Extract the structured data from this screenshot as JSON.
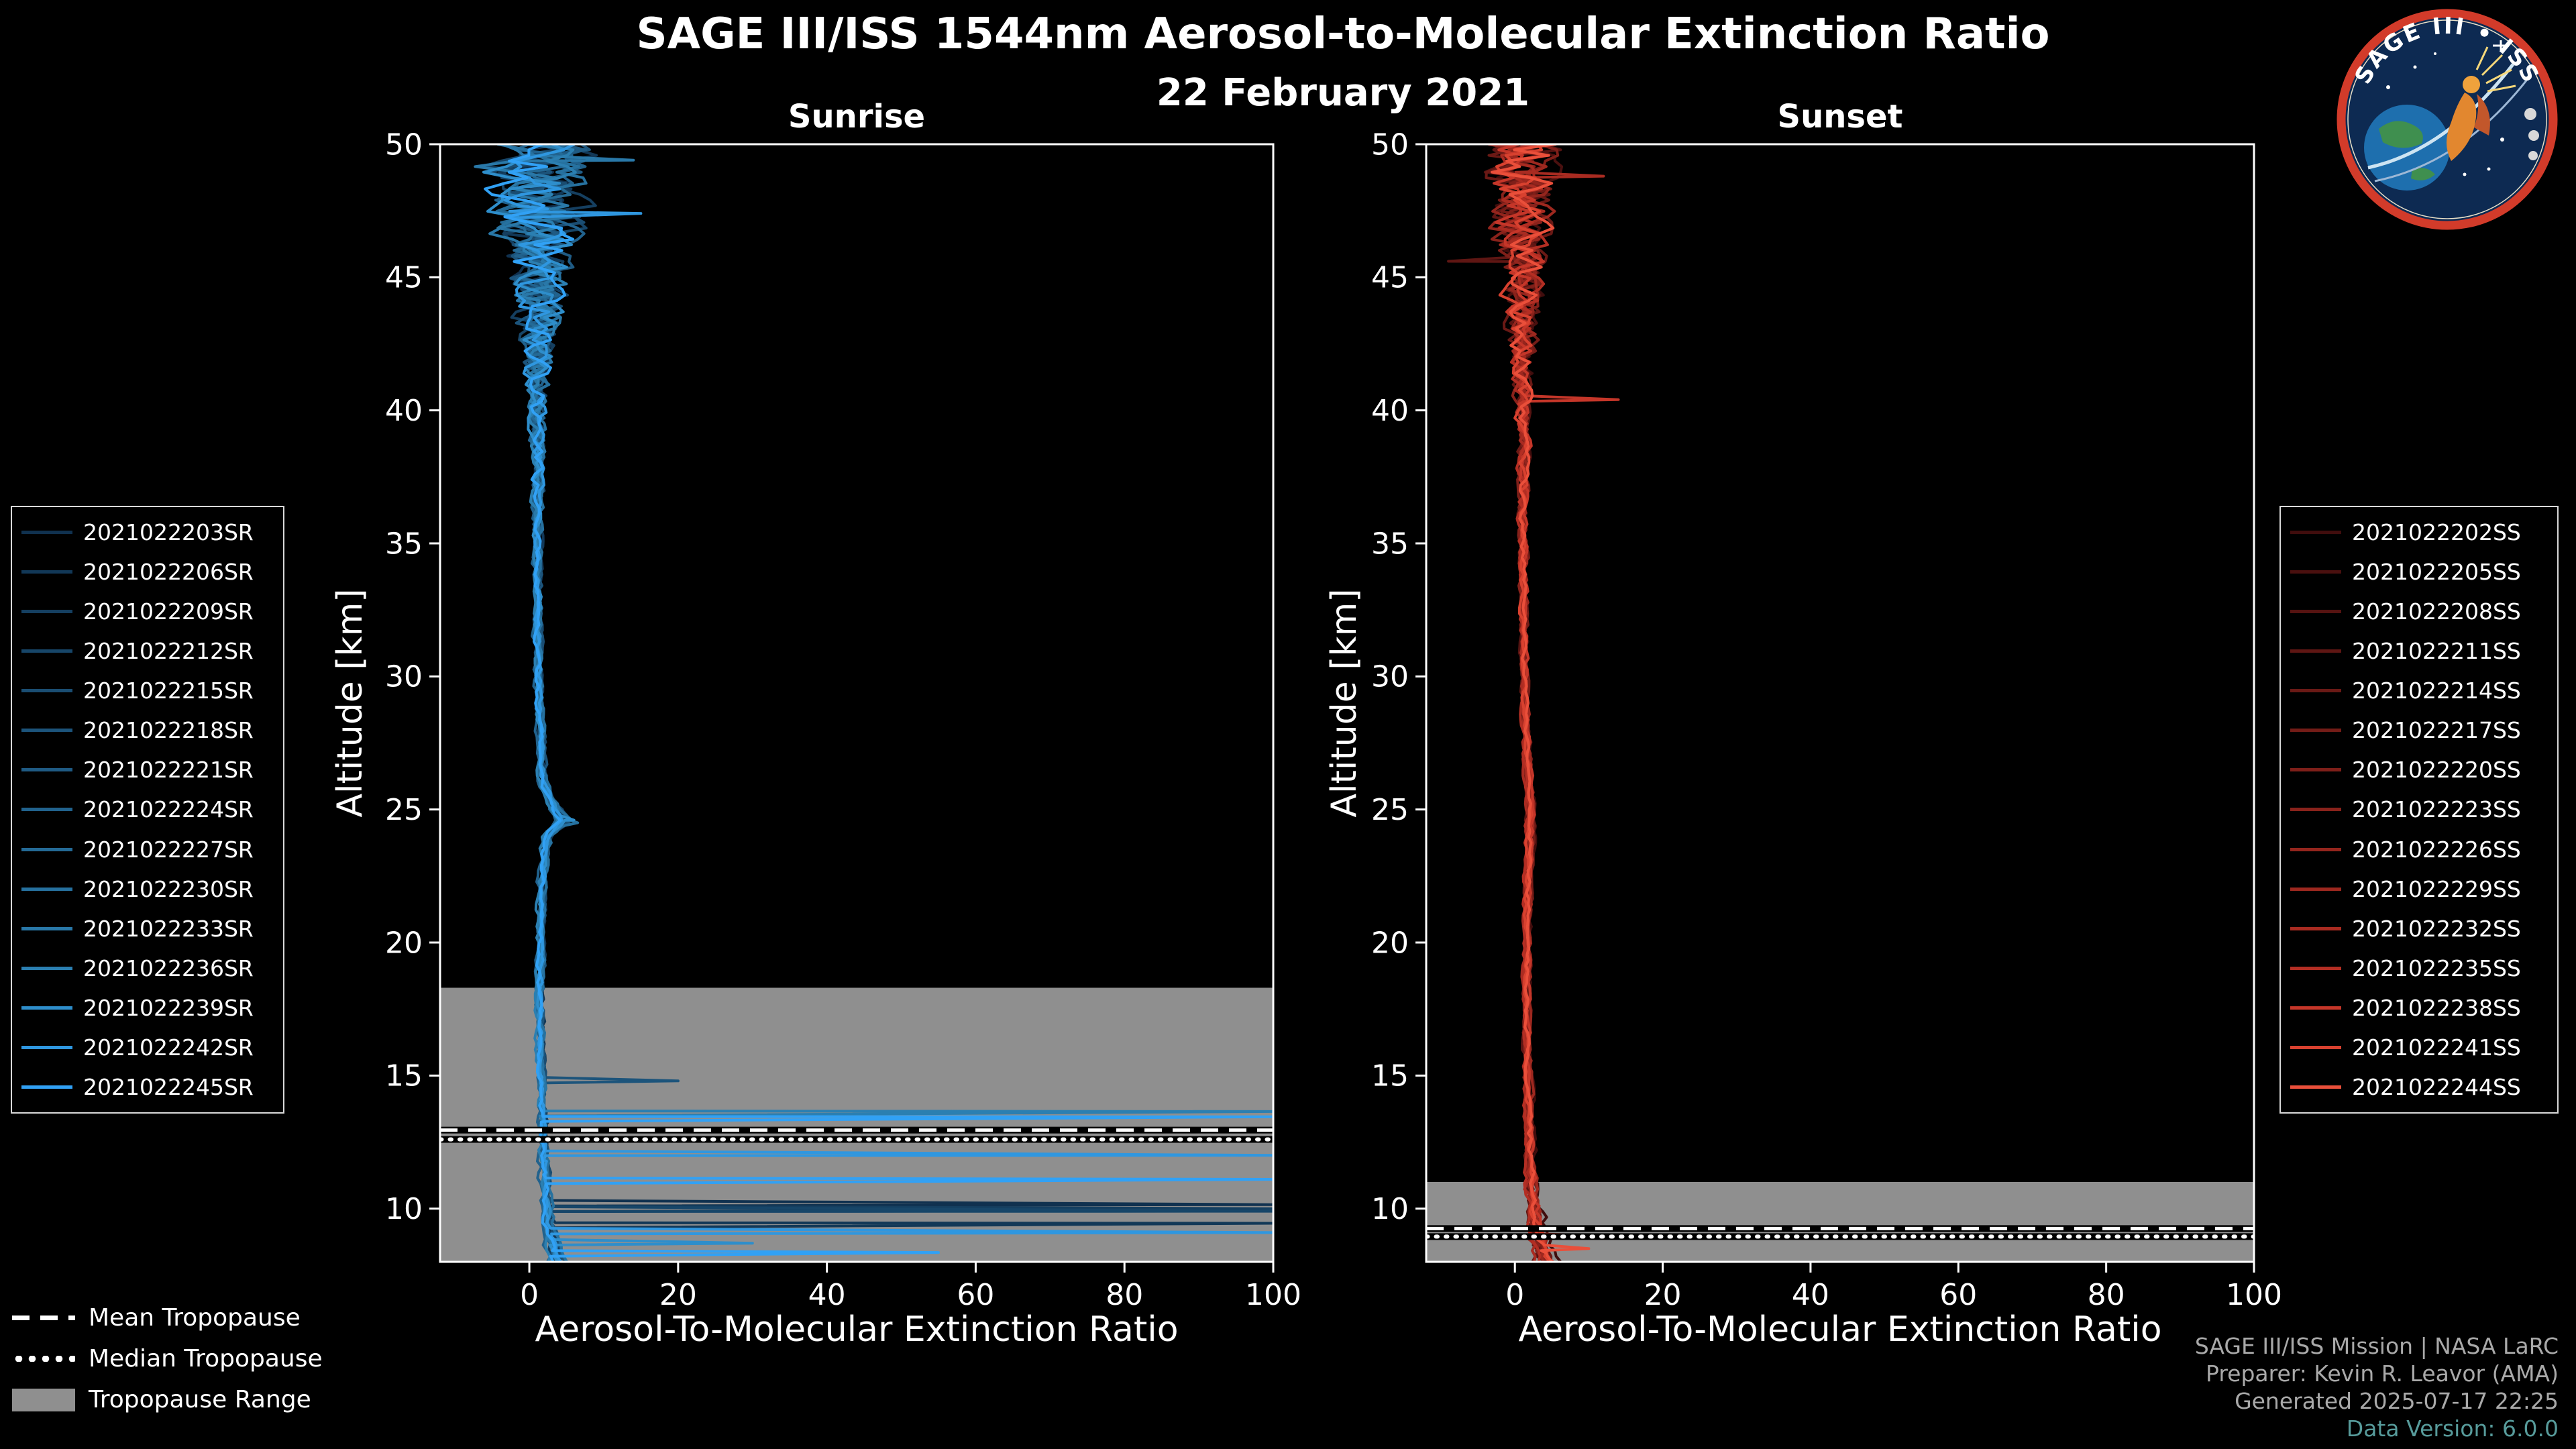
{
  "page": {
    "background": "#000000"
  },
  "header": {
    "title": "SAGE III/ISS 1544nm Aerosol-to-Molecular Extinction Ratio",
    "subtitle": "22 February 2021"
  },
  "logo": {
    "text_top": "SAGE III • ISS",
    "ring_color": "#d23b2a",
    "field_color": "#0d2a52"
  },
  "footer": {
    "line1": "SAGE III/ISS Mission | NASA LaRC",
    "line2": "Preparer: Kevin R. Leavor (AMA)",
    "line3": "Generated 2025-07-17 22:25",
    "line4": "Data Version: 6.0.0",
    "version_color": "#579b9b"
  },
  "tropopause_legend": {
    "mean_label": "Mean Tropopause",
    "median_label": "Median Tropopause",
    "range_label": "Tropopause Range",
    "band_color": "#8f8f8f"
  },
  "chart_data": [
    {
      "type": "line",
      "title": "Sunrise",
      "xlabel": "Aerosol-To-Molecular Extinction Ratio",
      "ylabel": "Altitude [km]",
      "xlim": [
        -12,
        100
      ],
      "ylim": [
        8,
        50
      ],
      "xticks": [
        0,
        20,
        40,
        60,
        80,
        100
      ],
      "yticks": [
        10,
        15,
        20,
        25,
        30,
        35,
        40,
        45,
        50
      ],
      "grid": false,
      "legend_side": "left",
      "line_color_theme": "blues",
      "tropopause": {
        "mean_km": 12.95,
        "median_km": 12.6,
        "range_km": [
          8.0,
          18.3
        ]
      },
      "base_profile": [
        [
          8,
          3.6
        ],
        [
          8.6,
          3.0
        ],
        [
          9.2,
          2.6
        ],
        [
          10,
          2.3
        ],
        [
          11,
          2.1
        ],
        [
          12,
          1.9
        ],
        [
          13,
          1.8
        ],
        [
          14,
          1.7
        ],
        [
          15,
          1.6
        ],
        [
          16,
          1.5
        ],
        [
          18,
          1.4
        ],
        [
          20,
          1.5
        ],
        [
          22,
          1.7
        ],
        [
          24,
          2.3
        ],
        [
          24.6,
          4.5
        ],
        [
          25.3,
          2.8
        ],
        [
          26,
          1.8
        ],
        [
          28,
          1.4
        ],
        [
          30,
          1.2
        ],
        [
          33,
          1.1
        ],
        [
          36,
          1.0
        ],
        [
          40,
          1.1
        ],
        [
          44,
          1.0
        ],
        [
          47,
          1.0
        ],
        [
          50,
          1.0
        ]
      ],
      "noise_amplitude": [
        [
          8,
          0.5
        ],
        [
          12,
          0.35
        ],
        [
          20,
          0.3
        ],
        [
          30,
          0.35
        ],
        [
          36,
          0.5
        ],
        [
          39,
          0.8
        ],
        [
          41,
          1.4
        ],
        [
          43,
          2.4
        ],
        [
          45,
          3.6
        ],
        [
          47,
          4.6
        ],
        [
          48,
          5.2
        ],
        [
          49,
          6.0
        ],
        [
          50,
          6.8
        ]
      ],
      "series": [
        {
          "name": "2021022203SR",
          "color": "#10314f",
          "spikes": [
            [
              10.15,
              100
            ]
          ]
        },
        {
          "name": "2021022206SR",
          "color": "#123857",
          "spikes": [
            [
              9.45,
              100
            ]
          ]
        },
        {
          "name": "2021022209SR",
          "color": "#153f60",
          "spikes": [
            [
              10.0,
              100
            ]
          ]
        },
        {
          "name": "2021022212SR",
          "color": "#174669",
          "spikes": [
            [
              9.9,
              100
            ]
          ]
        },
        {
          "name": "2021022215SR",
          "color": "#1a4d72",
          "spikes": []
        },
        {
          "name": "2021022218SR",
          "color": "#1c547b",
          "spikes": [
            [
              14.8,
              20
            ]
          ]
        },
        {
          "name": "2021022221SR",
          "color": "#1f5b84",
          "spikes": []
        },
        {
          "name": "2021022224SR",
          "color": "#21628d",
          "spikes": []
        },
        {
          "name": "2021022227SR",
          "color": "#246a96",
          "spikes": []
        },
        {
          "name": "2021022230SR",
          "color": "#26719f",
          "spikes": [
            [
              24.5,
              6.5
            ]
          ]
        },
        {
          "name": "2021022233SR",
          "color": "#2978a8",
          "spikes": [
            [
              49.4,
              14
            ]
          ]
        },
        {
          "name": "2021022236SR",
          "color": "#2b7fb1",
          "spikes": [
            [
              13.65,
              100
            ]
          ]
        },
        {
          "name": "2021022239SR",
          "color": "#2e8ecb",
          "spikes": [
            [
              8.7,
              30
            ],
            [
              24.6,
              6.0
            ]
          ]
        },
        {
          "name": "2021022242SR",
          "color": "#2f97e0",
          "spikes": [
            [
              12.0,
              100
            ],
            [
              9.1,
              100
            ],
            [
              47.4,
              15
            ]
          ]
        },
        {
          "name": "2021022245SR",
          "color": "#31a1f5",
          "spikes": [
            [
              13.45,
              100
            ],
            [
              11.1,
              100
            ],
            [
              8.35,
              55
            ]
          ]
        }
      ]
    },
    {
      "type": "line",
      "title": "Sunset",
      "xlabel": "Aerosol-To-Molecular Extinction Ratio",
      "ylabel": "Altitude [km]",
      "xlim": [
        -12,
        100
      ],
      "ylim": [
        8,
        50
      ],
      "xticks": [
        0,
        20,
        40,
        60,
        80,
        100
      ],
      "yticks": [
        10,
        15,
        20,
        25,
        30,
        35,
        40,
        45,
        50
      ],
      "grid": false,
      "legend_side": "right",
      "line_color_theme": "reds",
      "tropopause": {
        "mean_km": 9.25,
        "median_km": 8.95,
        "range_km": [
          8.0,
          11.0
        ]
      },
      "base_profile": [
        [
          8,
          4.2
        ],
        [
          8.6,
          3.7
        ],
        [
          9.4,
          3.2
        ],
        [
          10,
          2.7
        ],
        [
          11,
          2.3
        ],
        [
          12,
          2.1
        ],
        [
          14,
          1.9
        ],
        [
          16,
          1.7
        ],
        [
          18,
          1.6
        ],
        [
          20,
          1.7
        ],
        [
          22,
          1.8
        ],
        [
          24,
          2.1
        ],
        [
          25,
          2.2
        ],
        [
          26,
          1.9
        ],
        [
          28,
          1.5
        ],
        [
          30,
          1.3
        ],
        [
          33,
          1.2
        ],
        [
          36,
          1.1
        ],
        [
          40,
          1.2
        ],
        [
          44,
          1.0
        ],
        [
          47,
          1.0
        ],
        [
          50,
          1.0
        ]
      ],
      "noise_amplitude": [
        [
          8,
          0.9
        ],
        [
          10,
          0.55
        ],
        [
          14,
          0.3
        ],
        [
          20,
          0.25
        ],
        [
          30,
          0.3
        ],
        [
          36,
          0.45
        ],
        [
          39,
          0.7
        ],
        [
          41,
          1.1
        ],
        [
          43,
          1.7
        ],
        [
          45,
          2.4
        ],
        [
          47,
          3.1
        ],
        [
          48,
          3.6
        ],
        [
          49,
          4.2
        ],
        [
          50,
          4.8
        ]
      ],
      "series": [
        {
          "name": "2021022202SS",
          "color": "#400d0d",
          "spikes": []
        },
        {
          "name": "2021022205SS",
          "color": "#4a100f",
          "spikes": []
        },
        {
          "name": "2021022208SS",
          "color": "#551311",
          "spikes": []
        },
        {
          "name": "2021022211SS",
          "color": "#5f1613",
          "spikes": [
            [
              45.6,
              -9
            ]
          ]
        },
        {
          "name": "2021022214SS",
          "color": "#6a1915",
          "spikes": []
        },
        {
          "name": "2021022217SS",
          "color": "#741c17",
          "spikes": []
        },
        {
          "name": "2021022220SS",
          "color": "#7f1f19",
          "spikes": []
        },
        {
          "name": "2021022223SS",
          "color": "#89221b",
          "spikes": []
        },
        {
          "name": "2021022226SS",
          "color": "#94251d",
          "spikes": []
        },
        {
          "name": "2021022229SS",
          "color": "#9e281f",
          "spikes": []
        },
        {
          "name": "2021022232SS",
          "color": "#a92b21",
          "spikes": [
            [
              48.8,
              12
            ]
          ]
        },
        {
          "name": "2021022235SS",
          "color": "#b32e23",
          "spikes": []
        },
        {
          "name": "2021022238SS",
          "color": "#c53629",
          "spikes": [
            [
              40.4,
              14
            ]
          ]
        },
        {
          "name": "2021022241SS",
          "color": "#d8412f",
          "spikes": [
            [
              9.0,
              9
            ]
          ]
        },
        {
          "name": "2021022244SS",
          "color": "#ea4f3a",
          "spikes": [
            [
              8.5,
              10
            ]
          ]
        }
      ]
    }
  ]
}
